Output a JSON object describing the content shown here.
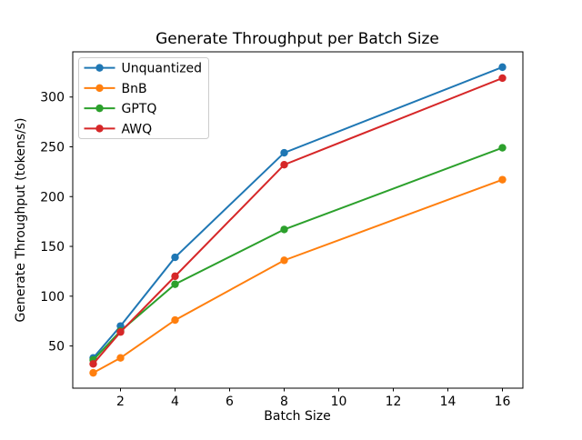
{
  "figure": {
    "background": "#ffffff",
    "spine_color": "#000000",
    "legend_border_color": "#cccccc",
    "legend_background": "#ffffff"
  },
  "chart_data": {
    "type": "line",
    "title": "Generate Throughput per Batch Size",
    "xlabel": "Batch Size",
    "ylabel": "Generate Throughput (tokens/s)",
    "x": [
      1,
      2,
      4,
      8,
      16
    ],
    "series": [
      {
        "name": "Unquantized",
        "color": "#1f77b4",
        "values": [
          38,
          70,
          139,
          244,
          330
        ]
      },
      {
        "name": "BnB",
        "color": "#ff7f0e",
        "values": [
          23,
          38,
          76,
          136,
          217
        ]
      },
      {
        "name": "GPTQ",
        "color": "#2ca02c",
        "values": [
          36,
          65,
          112,
          167,
          249
        ]
      },
      {
        "name": "AWQ",
        "color": "#d62728",
        "values": [
          32,
          64,
          120,
          232,
          319
        ]
      }
    ],
    "xticks": [
      2,
      4,
      6,
      8,
      10,
      12,
      14,
      16
    ],
    "yticks": [
      50,
      100,
      150,
      200,
      250,
      300
    ],
    "xlim": [
      0.25,
      16.75
    ],
    "ylim": [
      7.6,
      345.4
    ],
    "grid": false,
    "legend_position": "upper left",
    "marker": "o",
    "line_style": "solid"
  }
}
